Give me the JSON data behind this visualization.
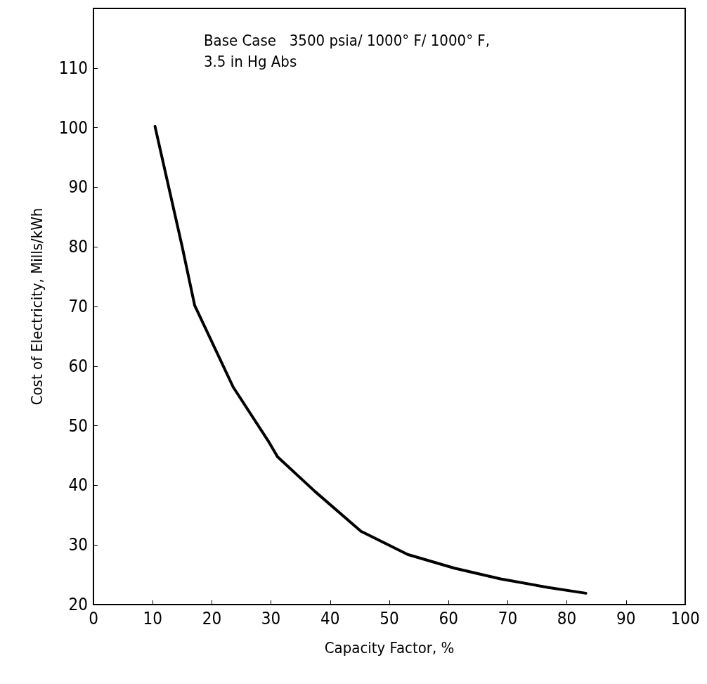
{
  "chart_data": {
    "type": "line",
    "xlabel": "Capacity Factor, %",
    "ylabel": "Cost of Electricity, Mills/kWh",
    "annotations": [
      "Base Case   3500 psia/ 1000° F/ 1000° F,\n3.5 in Hg Abs"
    ],
    "series": [
      {
        "color": "#000000",
        "x": [
          10.4,
          15.0,
          17.1,
          23.6,
          29.5,
          31.1,
          37.4,
          45.2,
          53.1,
          61.0,
          68.8,
          76.7,
          83.2
        ],
        "values": [
          100.2,
          80,
          70.2,
          56.5,
          47.5,
          44.8,
          39,
          32.3,
          28.4,
          26.1,
          24.3,
          22.9,
          21.9
        ]
      }
    ],
    "xlim": [
      0,
      100
    ],
    "xticks": [
      0,
      10,
      20,
      30,
      40,
      50,
      60,
      70,
      80,
      90,
      100
    ],
    "ylim": [
      20,
      120
    ],
    "yticks": [
      20,
      30,
      40,
      50,
      60,
      70,
      80,
      90,
      100,
      110
    ],
    "grid": false,
    "marker": "none",
    "line_style": "solid"
  }
}
